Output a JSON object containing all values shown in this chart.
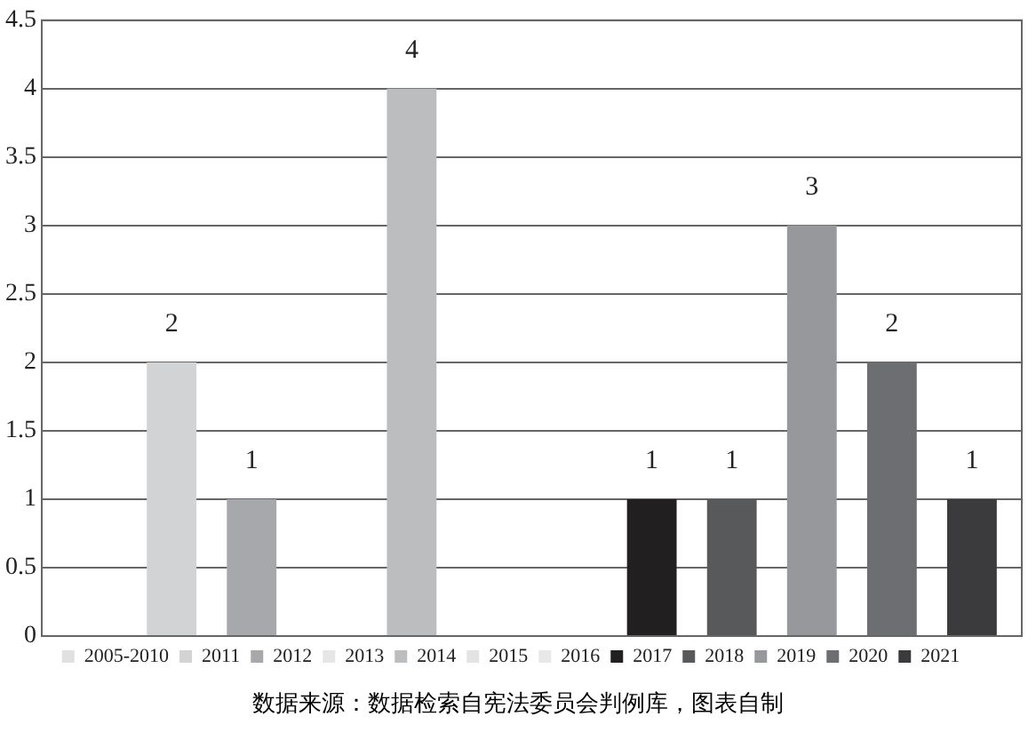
{
  "chart_data": {
    "type": "bar",
    "categories": [
      null
    ],
    "series": [
      {
        "name": "2005-2010",
        "color": "#e0e0e0",
        "values": [
          0
        ],
        "value_labels": [
          null
        ]
      },
      {
        "name": "2011",
        "color": "#d2d3d5",
        "values": [
          2
        ],
        "value_labels": [
          "2"
        ]
      },
      {
        "name": "2012",
        "color": "#a7a8ab",
        "values": [
          1
        ],
        "value_labels": [
          "1"
        ]
      },
      {
        "name": "2013",
        "color": "#e6e6e6",
        "values": [
          0
        ],
        "value_labels": [
          null
        ]
      },
      {
        "name": "2014",
        "color": "#bcbdbf",
        "values": [
          4
        ],
        "value_labels": [
          "4"
        ]
      },
      {
        "name": "2015",
        "color": "#e3e3e3",
        "values": [
          0
        ],
        "value_labels": [
          null
        ]
      },
      {
        "name": "2016",
        "color": "#e8e8e8",
        "values": [
          0
        ],
        "value_labels": [
          null
        ]
      },
      {
        "name": "2017",
        "color": "#221f20",
        "values": [
          1
        ],
        "value_labels": [
          "1"
        ]
      },
      {
        "name": "2018",
        "color": "#58595b",
        "values": [
          1
        ],
        "value_labels": [
          "1"
        ]
      },
      {
        "name": "2019",
        "color": "#97989b",
        "values": [
          3
        ],
        "value_labels": [
          "3"
        ]
      },
      {
        "name": "2020",
        "color": "#6d6e71",
        "values": [
          2
        ],
        "value_labels": [
          "2"
        ]
      },
      {
        "name": "2021",
        "color": "#3b3b3d",
        "values": [
          1
        ],
        "value_labels": [
          "1"
        ]
      }
    ],
    "ylim": [
      0,
      4.5
    ],
    "yticks": [
      0,
      0.5,
      1,
      1.5,
      2,
      2.5,
      3,
      3.5,
      4,
      4.5
    ],
    "grid": "y",
    "legend": "bottom",
    "tick_labels": "y",
    "annotations": [
      "数据来源：数据检索自宪法委员会判例库，图表自制"
    ]
  }
}
